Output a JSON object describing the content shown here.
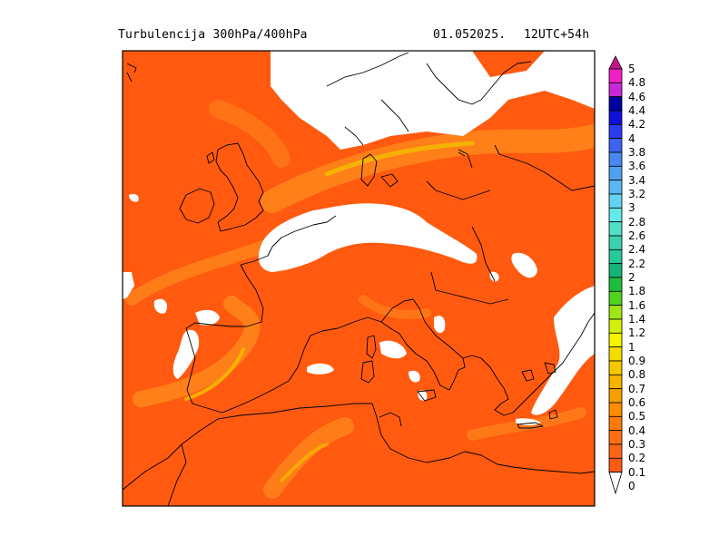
{
  "header": {
    "title": "Turbulencija 300hPa/400hPa",
    "date": "01.052025.",
    "run": "12UTC+54h"
  },
  "colors": {
    "background_field": "#ff5a0f",
    "moderate_band": "#ff8c1e",
    "strong_band": "#f5b800",
    "no_data": "#ffffff",
    "coastline": "#000000"
  },
  "legend": {
    "levels": [
      {
        "label": "5",
        "color": "#c8148c"
      },
      {
        "label": "4.8",
        "color": "#f020c8"
      },
      {
        "label": "4.6",
        "color": "#c828d8"
      },
      {
        "label": "4.4",
        "color": "#0000a0"
      },
      {
        "label": "4.2",
        "color": "#1010d8"
      },
      {
        "label": "4",
        "color": "#2a3cf0"
      },
      {
        "label": "3.8",
        "color": "#3c64f0"
      },
      {
        "label": "3.6",
        "color": "#4a86f0"
      },
      {
        "label": "3.4",
        "color": "#50a0f0"
      },
      {
        "label": "3.2",
        "color": "#5ab8f0"
      },
      {
        "label": "3",
        "color": "#64d2f0"
      },
      {
        "label": "2.8",
        "color": "#64e8e8"
      },
      {
        "label": "2.6",
        "color": "#50e0c8"
      },
      {
        "label": "2.4",
        "color": "#3cd2b0"
      },
      {
        "label": "2.2",
        "color": "#28c89a"
      },
      {
        "label": "2",
        "color": "#14b478"
      },
      {
        "label": "1.8",
        "color": "#1ebe3c"
      },
      {
        "label": "1.6",
        "color": "#50d21e"
      },
      {
        "label": "1.4",
        "color": "#a0e614"
      },
      {
        "label": "1.2",
        "color": "#d2f00a"
      },
      {
        "label": "1",
        "color": "#f5f500"
      },
      {
        "label": "0.9",
        "color": "#f5dc00"
      },
      {
        "label": "0.8",
        "color": "#f5c800"
      },
      {
        "label": "0.7",
        "color": "#f5b400"
      },
      {
        "label": "0.6",
        "color": "#f5a000"
      },
      {
        "label": "0.5",
        "color": "#ff8c00"
      },
      {
        "label": "0.4",
        "color": "#ff7a0a"
      },
      {
        "label": "0.3",
        "color": "#ff6e14"
      },
      {
        "label": "0.2",
        "color": "#ff6414"
      },
      {
        "label": "0.1",
        "color": "#ff5a0f"
      },
      {
        "label": "0",
        "color": "#ffffff"
      }
    ]
  }
}
